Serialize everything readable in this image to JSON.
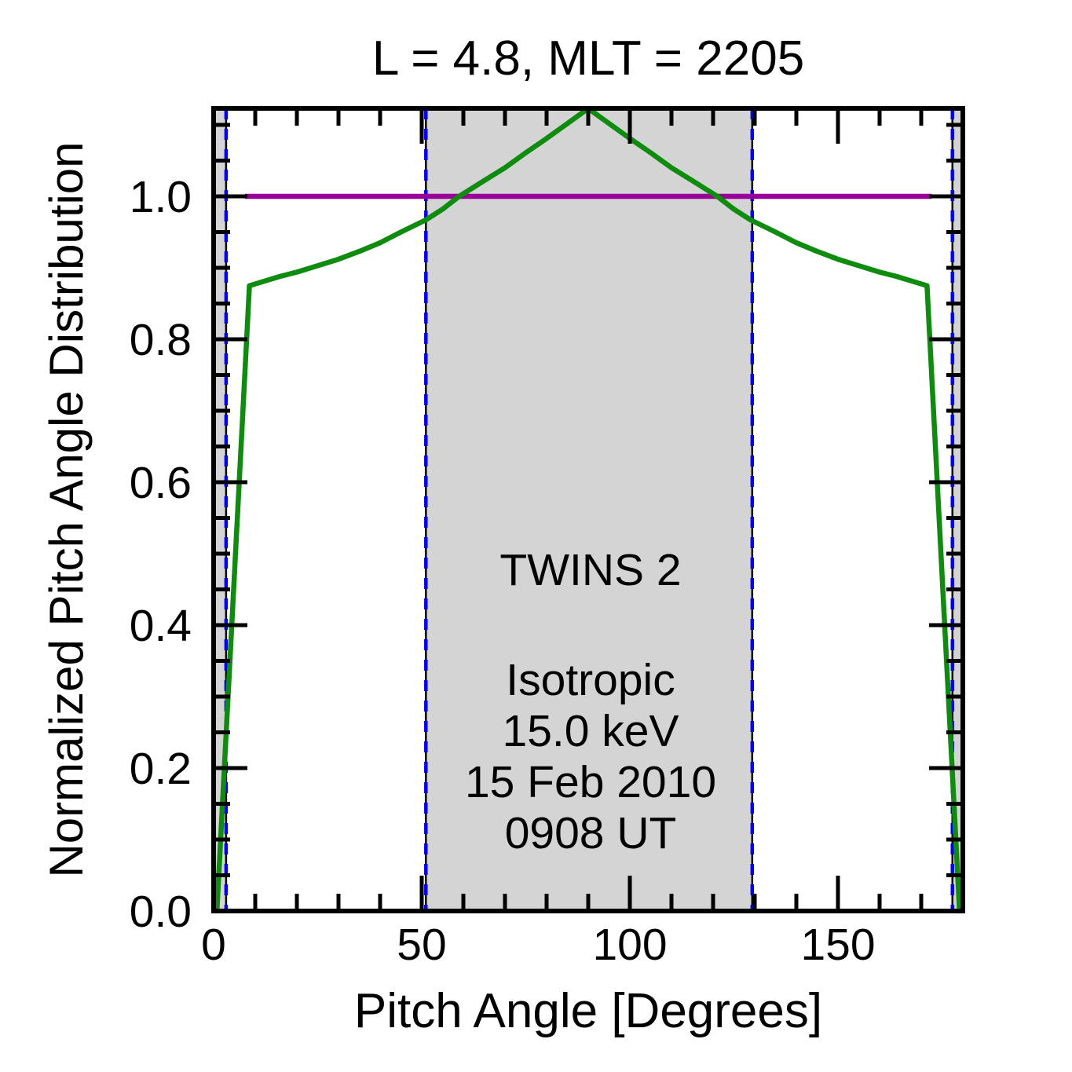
{
  "figure": {
    "title": "L =  4.8, MLT = 2205",
    "xlabel": "Pitch Angle [Degrees]",
    "ylabel": "Normalized Pitch Angle Distribution"
  },
  "annotations": [
    {
      "text": "TWINS 2",
      "color": "#0e8c0e"
    },
    {
      "text": "Isotropic",
      "color": "#990099"
    },
    {
      "text": "15.0 keV",
      "color": "#000000"
    },
    {
      "text": "15 Feb 2010",
      "color": "#000000"
    },
    {
      "text": "0908 UT",
      "color": "#000000"
    }
  ],
  "chart_data": {
    "type": "line",
    "title": "L = 4.8, MLT = 2205",
    "xlabel": "Pitch Angle [Degrees]",
    "ylabel": "Normalized Pitch Angle Distribution",
    "xlim": [
      0,
      180
    ],
    "ylim": [
      0,
      1.123
    ],
    "xticks": [
      0,
      50,
      100,
      150
    ],
    "xtick_labels": [
      "0",
      "50",
      "100",
      "150"
    ],
    "x_minor_step": 10,
    "yticks": [
      0.0,
      0.2,
      0.4,
      0.6,
      0.8,
      1.0
    ],
    "ytick_labels": [
      "0.0",
      "0.2",
      "0.4",
      "0.6",
      "0.8",
      "1.0"
    ],
    "y_minor_step": 0.05,
    "grid": false,
    "legend_position": "center annotations",
    "series": [
      {
        "name": "TWINS 2",
        "color": "#0e8c0e",
        "points": [
          [
            0.8,
            0.0
          ],
          [
            8.6,
            0.875
          ],
          [
            12,
            0.881
          ],
          [
            16,
            0.888
          ],
          [
            20,
            0.894
          ],
          [
            25,
            0.903
          ],
          [
            30,
            0.912
          ],
          [
            35,
            0.923
          ],
          [
            40,
            0.935
          ],
          [
            45,
            0.95
          ],
          [
            51,
            0.967
          ],
          [
            55,
            0.982
          ],
          [
            59,
            1.0
          ],
          [
            65,
            1.022
          ],
          [
            70,
            1.04
          ],
          [
            75,
            1.061
          ],
          [
            80,
            1.081
          ],
          [
            85,
            1.102
          ],
          [
            90,
            1.123
          ],
          [
            95,
            1.102
          ],
          [
            100,
            1.081
          ],
          [
            105,
            1.061
          ],
          [
            110,
            1.04
          ],
          [
            115,
            1.022
          ],
          [
            121,
            1.0
          ],
          [
            125,
            0.982
          ],
          [
            129,
            0.967
          ],
          [
            135,
            0.95
          ],
          [
            140,
            0.935
          ],
          [
            145,
            0.923
          ],
          [
            150,
            0.912
          ],
          [
            155,
            0.903
          ],
          [
            160,
            0.894
          ],
          [
            164,
            0.888
          ],
          [
            168,
            0.881
          ],
          [
            171.4,
            0.875
          ],
          [
            179.2,
            0.0
          ]
        ]
      },
      {
        "name": "Isotropic",
        "color": "#990099",
        "points": [
          [
            7.5,
            1.0
          ],
          [
            172.5,
            1.0
          ]
        ]
      }
    ],
    "shaded_bands_deg": [
      [
        0,
        3
      ],
      [
        51,
        129.4
      ],
      [
        177.5,
        180
      ]
    ],
    "band_color": "#d4d4d4",
    "dashed_boundaries_deg": [
      3,
      51,
      129.4,
      177.5
    ],
    "dashed_line_color": "#0000ff",
    "peak": {
      "angle": 90,
      "value": 1.123
    },
    "left_kink": {
      "angle": 8.6,
      "value": 0.875
    },
    "right_kink": {
      "angle": 171.4,
      "value": 0.875
    }
  }
}
